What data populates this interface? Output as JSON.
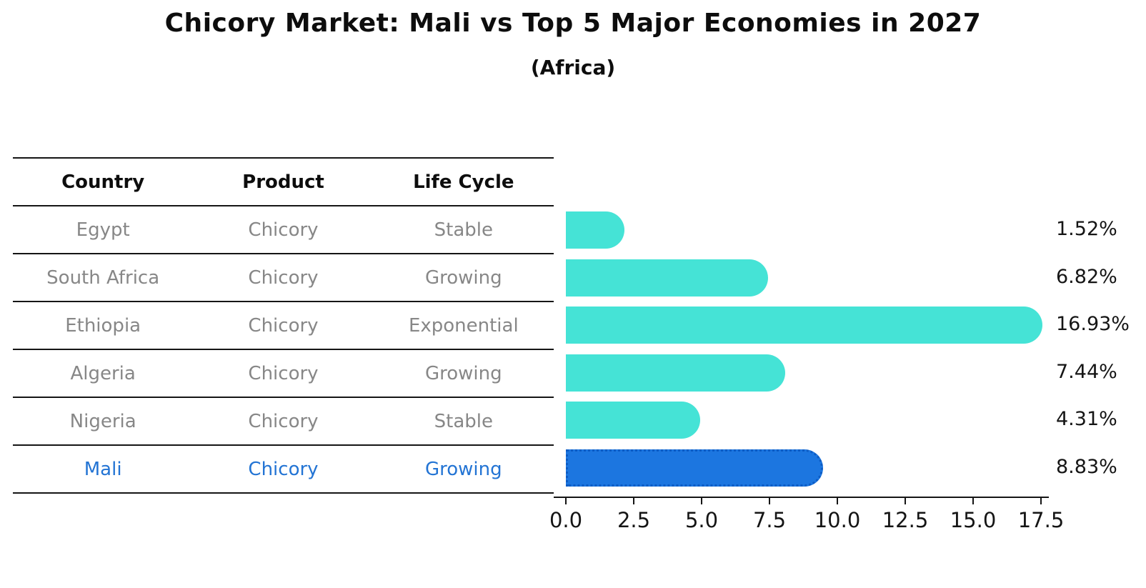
{
  "title": "Chicory Market: Mali vs Top 5 Major Economies in 2027",
  "subtitle": "(Africa)",
  "table": {
    "headers": [
      "Country",
      "Product",
      "Life Cycle"
    ],
    "rows": [
      {
        "country": "Egypt",
        "product": "Chicory",
        "life_cycle": "Stable",
        "highlight": false
      },
      {
        "country": "South Africa",
        "product": "Chicory",
        "life_cycle": "Growing",
        "highlight": false
      },
      {
        "country": "Ethiopia",
        "product": "Chicory",
        "life_cycle": "Exponential",
        "highlight": false
      },
      {
        "country": "Algeria",
        "product": "Chicory",
        "life_cycle": "Growing",
        "highlight": false
      },
      {
        "country": "Nigeria",
        "product": "Chicory",
        "life_cycle": "Stable",
        "highlight": false
      },
      {
        "country": "Mali",
        "product": "Chicory",
        "life_cycle": "Growing",
        "highlight": true
      }
    ]
  },
  "chart_data": {
    "type": "bar",
    "orientation": "horizontal",
    "title": "Chicory Market: Mali vs Top 5 Major Economies in 2027",
    "subtitle": "(Africa)",
    "categories": [
      "Egypt",
      "South Africa",
      "Ethiopia",
      "Algeria",
      "Nigeria",
      "Mali"
    ],
    "values": [
      1.52,
      6.82,
      16.93,
      7.44,
      4.31,
      8.83
    ],
    "value_labels": [
      "1.52%",
      "6.82%",
      "16.93%",
      "7.44%",
      "4.31%",
      "8.83%"
    ],
    "xlim": [
      0,
      17.5
    ],
    "xticks": [
      "0.0",
      "2.5",
      "5.0",
      "7.5",
      "10.0",
      "12.5",
      "15.0",
      "17.5"
    ],
    "xtick_values": [
      0,
      2.5,
      5.0,
      7.5,
      10.0,
      12.5,
      15.0,
      17.5
    ],
    "grid": false,
    "legend": false,
    "colors": {
      "bar": "#45e3d6",
      "highlight_bar": "#1c76e0",
      "highlight_border": "#0d5cc4",
      "highlight_text": "#2374d4",
      "text_gray": "#878787",
      "axis": "#151515"
    },
    "highlight_index": 5
  }
}
